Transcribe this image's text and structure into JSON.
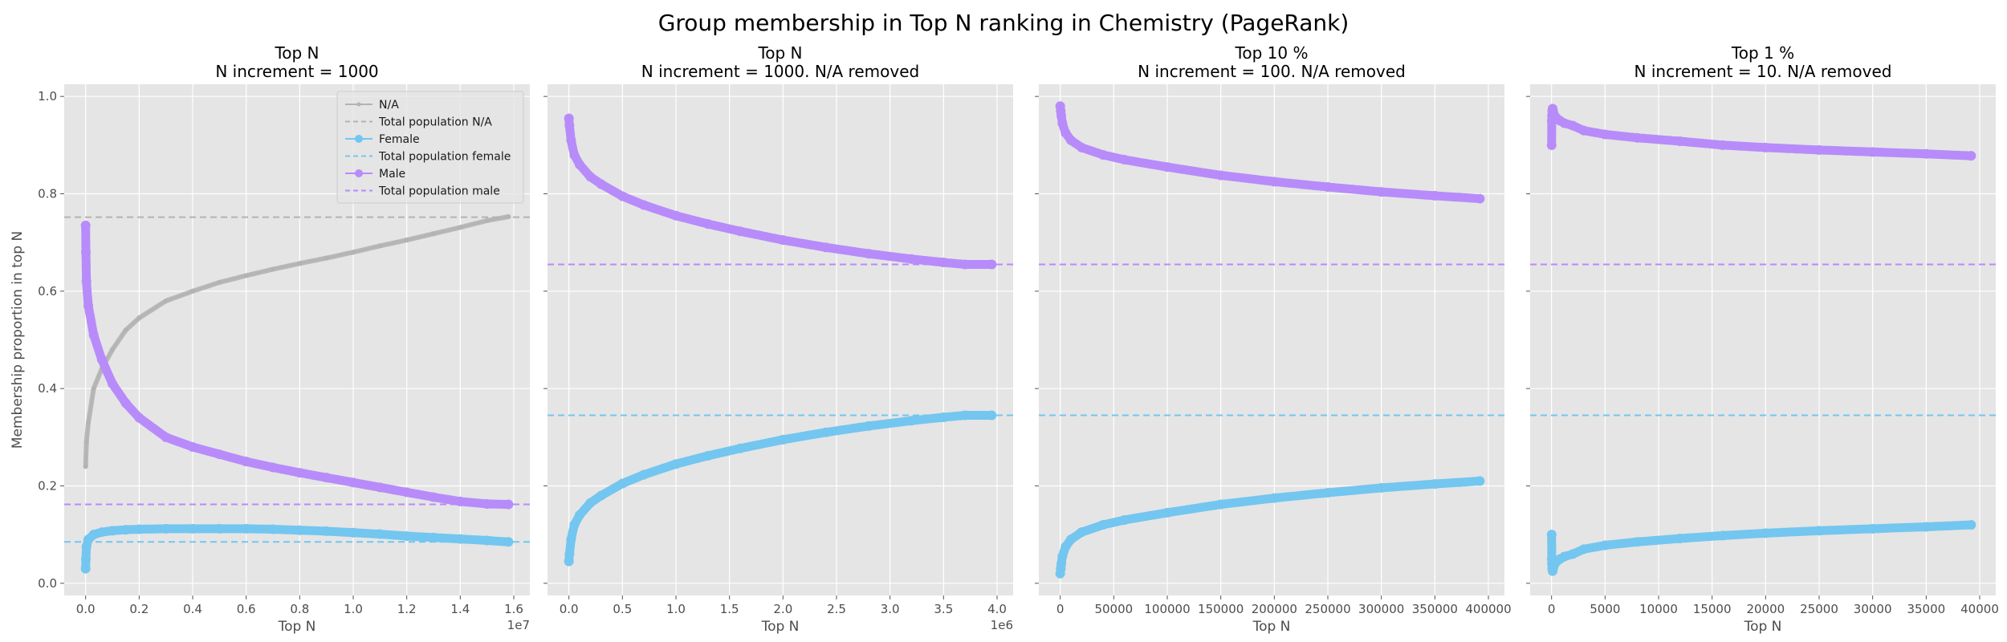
{
  "figure": {
    "title": "Group membership in Top N ranking in Chemistry (PageRank)"
  },
  "colors": {
    "na": "#b3b3b3",
    "female": "#73c6ef",
    "male": "#b88bfa",
    "panel_bg": "#e5e5e5",
    "grid": "#ffffff"
  },
  "chart_data": [
    {
      "type": "line",
      "title": "Top N\nN increment = 1000",
      "xlabel": "Top N",
      "ylabel": "Membership proportion in top N",
      "x_multiplier_label": "1e7",
      "xlim": [
        -800000,
        16600000
      ],
      "ylim": [
        -0.025,
        1.025
      ],
      "xticks": [
        0,
        2000000,
        4000000,
        6000000,
        8000000,
        10000000,
        12000000,
        14000000,
        16000000
      ],
      "xtick_labels": [
        "0.0",
        "0.2",
        "0.4",
        "0.6",
        "0.8",
        "1.0",
        "1.2",
        "1.4",
        "1.6"
      ],
      "yticks": [
        0.0,
        0.2,
        0.4,
        0.6,
        0.8,
        1.0
      ],
      "ytick_labels": [
        "0.0",
        "0.2",
        "0.4",
        "0.6",
        "0.8",
        "1.0"
      ],
      "grid": true,
      "legend": "top-right",
      "series": [
        {
          "name": "N/A",
          "group": "na",
          "x": [
            0,
            30000,
            100000,
            300000,
            600000,
            1000000,
            1500000,
            2000000,
            3000000,
            4000000,
            5000000,
            6000000,
            7000000,
            8000000,
            9000000,
            10000000,
            11000000,
            12000000,
            13000000,
            14000000,
            15000000,
            15800000
          ],
          "y": [
            0.24,
            0.29,
            0.33,
            0.4,
            0.44,
            0.48,
            0.52,
            0.545,
            0.58,
            0.6,
            0.618,
            0.632,
            0.645,
            0.657,
            0.668,
            0.68,
            0.693,
            0.705,
            0.718,
            0.731,
            0.745,
            0.753
          ]
        },
        {
          "name": "Total population N/A",
          "group": "na",
          "hline": 0.752
        },
        {
          "name": "Female",
          "group": "female",
          "x": [
            0,
            10000,
            30000,
            100000,
            300000,
            600000,
            1000000,
            1500000,
            2000000,
            3000000,
            4000000,
            5000000,
            6000000,
            7000000,
            8000000,
            9000000,
            10000000,
            11000000,
            12000000,
            13000000,
            14000000,
            15000000,
            15800000
          ],
          "y": [
            0.03,
            0.05,
            0.075,
            0.09,
            0.1,
            0.105,
            0.108,
            0.11,
            0.111,
            0.112,
            0.112,
            0.112,
            0.112,
            0.111,
            0.109,
            0.107,
            0.104,
            0.101,
            0.097,
            0.094,
            0.091,
            0.088,
            0.085
          ]
        },
        {
          "name": "Total population female",
          "group": "female",
          "hline": 0.085
        },
        {
          "name": "Male",
          "group": "male",
          "x": [
            0,
            10000,
            30000,
            100000,
            300000,
            600000,
            1000000,
            1500000,
            2000000,
            3000000,
            4000000,
            5000000,
            6000000,
            7000000,
            8000000,
            9000000,
            10000000,
            11000000,
            12000000,
            13000000,
            14000000,
            15000000,
            15800000
          ],
          "y": [
            0.735,
            0.68,
            0.62,
            0.57,
            0.51,
            0.46,
            0.41,
            0.37,
            0.34,
            0.3,
            0.28,
            0.265,
            0.25,
            0.238,
            0.227,
            0.217,
            0.207,
            0.197,
            0.187,
            0.177,
            0.168,
            0.163,
            0.162
          ]
        },
        {
          "name": "Total population male",
          "group": "male",
          "hline": 0.162
        }
      ]
    },
    {
      "type": "line",
      "title": "Top N\nN increment = 1000. N/A removed",
      "xlabel": "Top N",
      "x_multiplier_label": "1e6",
      "xlim": [
        -200000,
        4150000
      ],
      "ylim": [
        -0.025,
        1.025
      ],
      "xticks": [
        0,
        500000,
        1000000,
        1500000,
        2000000,
        2500000,
        3000000,
        3500000,
        4000000
      ],
      "xtick_labels": [
        "0.0",
        "0.5",
        "1.0",
        "1.5",
        "2.0",
        "2.5",
        "3.0",
        "3.5",
        "4.0"
      ],
      "yticks": [
        0.0,
        0.2,
        0.4,
        0.6,
        0.8,
        1.0
      ],
      "grid": true,
      "series": [
        {
          "group": "female",
          "x": [
            0,
            5000,
            20000,
            50000,
            100000,
            200000,
            300000,
            500000,
            700000,
            1000000,
            1300000,
            1600000,
            2000000,
            2400000,
            2800000,
            3200000,
            3500000,
            3700000,
            3950000
          ],
          "y": [
            0.045,
            0.06,
            0.09,
            0.12,
            0.14,
            0.165,
            0.18,
            0.205,
            0.223,
            0.245,
            0.262,
            0.277,
            0.295,
            0.31,
            0.323,
            0.334,
            0.341,
            0.345,
            0.345
          ]
        },
        {
          "group": "female",
          "hline": 0.345
        },
        {
          "group": "male",
          "x": [
            0,
            5000,
            20000,
            50000,
            100000,
            200000,
            300000,
            500000,
            700000,
            1000000,
            1300000,
            1600000,
            2000000,
            2400000,
            2800000,
            3200000,
            3500000,
            3700000,
            3950000
          ],
          "y": [
            0.955,
            0.94,
            0.91,
            0.88,
            0.86,
            0.835,
            0.82,
            0.795,
            0.777,
            0.755,
            0.738,
            0.723,
            0.705,
            0.69,
            0.677,
            0.666,
            0.659,
            0.655,
            0.655
          ]
        },
        {
          "group": "male",
          "hline": 0.655
        }
      ]
    },
    {
      "type": "line",
      "title": "Top 10 %\nN increment = 100. N/A removed",
      "xlabel": "Top N",
      "xlim": [
        -20000,
        415000
      ],
      "ylim": [
        -0.025,
        1.025
      ],
      "xticks": [
        0,
        50000,
        100000,
        150000,
        200000,
        250000,
        300000,
        350000,
        400000
      ],
      "xtick_labels": [
        "0",
        "50000",
        "100000",
        "150000",
        "200000",
        "250000",
        "300000",
        "350000",
        "400000"
      ],
      "yticks": [
        0.0,
        0.2,
        0.4,
        0.6,
        0.8,
        1.0
      ],
      "grid": true,
      "series": [
        {
          "group": "female",
          "x": [
            0,
            500,
            1000,
            2000,
            5000,
            10000,
            20000,
            40000,
            60000,
            100000,
            150000,
            200000,
            250000,
            300000,
            350000,
            392000
          ],
          "y": [
            0.02,
            0.03,
            0.04,
            0.055,
            0.075,
            0.09,
            0.105,
            0.12,
            0.13,
            0.145,
            0.162,
            0.175,
            0.186,
            0.196,
            0.204,
            0.21
          ]
        },
        {
          "group": "female",
          "hline": 0.345
        },
        {
          "group": "male",
          "x": [
            0,
            500,
            1000,
            2000,
            5000,
            10000,
            20000,
            40000,
            60000,
            100000,
            150000,
            200000,
            250000,
            300000,
            350000,
            392000
          ],
          "y": [
            0.98,
            0.97,
            0.96,
            0.945,
            0.925,
            0.91,
            0.895,
            0.88,
            0.87,
            0.855,
            0.838,
            0.825,
            0.814,
            0.804,
            0.796,
            0.79
          ]
        },
        {
          "group": "male",
          "hline": 0.655
        }
      ]
    },
    {
      "type": "line",
      "title": "Top 1 %\nN increment = 10. N/A removed",
      "xlabel": "Top N",
      "xlim": [
        -2000,
        41500
      ],
      "ylim": [
        -0.025,
        1.025
      ],
      "xticks": [
        0,
        5000,
        10000,
        15000,
        20000,
        25000,
        30000,
        35000,
        40000
      ],
      "xtick_labels": [
        "0",
        "5000",
        "10000",
        "15000",
        "20000",
        "25000",
        "30000",
        "35000",
        "40000"
      ],
      "yticks": [
        0.0,
        0.2,
        0.4,
        0.6,
        0.8,
        1.0
      ],
      "grid": true,
      "series": [
        {
          "group": "female",
          "x": [
            10,
            20,
            40,
            60,
            100,
            150,
            200,
            300,
            500,
            800,
            1200,
            2000,
            3000,
            5000,
            8000,
            12000,
            16000,
            20000,
            25000,
            30000,
            35000,
            39200
          ],
          "y": [
            0.1,
            0.05,
            0.04,
            0.03,
            0.025,
            0.03,
            0.035,
            0.04,
            0.045,
            0.05,
            0.055,
            0.06,
            0.07,
            0.078,
            0.085,
            0.092,
            0.098,
            0.103,
            0.108,
            0.112,
            0.116,
            0.12
          ]
        },
        {
          "group": "female",
          "hline": 0.345
        },
        {
          "group": "male",
          "x": [
            10,
            20,
            40,
            60,
            100,
            150,
            200,
            300,
            500,
            800,
            1200,
            2000,
            3000,
            5000,
            8000,
            12000,
            16000,
            20000,
            25000,
            30000,
            35000,
            39200
          ],
          "y": [
            0.9,
            0.95,
            0.96,
            0.97,
            0.975,
            0.97,
            0.965,
            0.96,
            0.955,
            0.95,
            0.945,
            0.94,
            0.93,
            0.922,
            0.915,
            0.908,
            0.9,
            0.895,
            0.89,
            0.886,
            0.882,
            0.878
          ]
        },
        {
          "group": "male",
          "hline": 0.655
        }
      ]
    }
  ]
}
